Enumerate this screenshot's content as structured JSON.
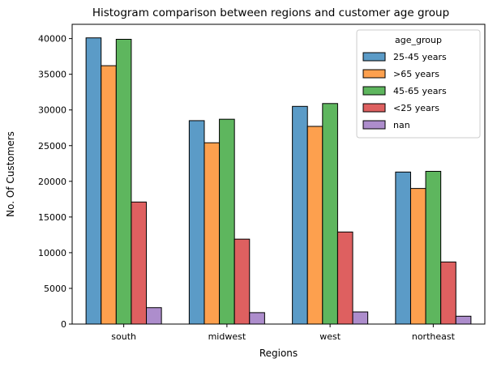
{
  "chart_data": {
    "type": "bar",
    "title": "Histogram comparison between regions and customer age group",
    "xlabel": "Regions",
    "ylabel": "No. Of Customers",
    "categories": [
      "south",
      "midwest",
      "west",
      "northeast"
    ],
    "ylim": [
      0,
      42000
    ],
    "yticks": [
      0,
      5000,
      10000,
      15000,
      20000,
      25000,
      30000,
      35000,
      40000
    ],
    "grid": false,
    "legend": {
      "title": "age_group",
      "placement": "top-right"
    },
    "series": [
      {
        "name": "25-45 years",
        "color": "#5b9bc7",
        "values": [
          40100,
          28500,
          30500,
          21300
        ]
      },
      {
        "name": ">65 years",
        "color": "#fda04e",
        "values": [
          36200,
          25400,
          27700,
          19000
        ]
      },
      {
        "name": "45-65 years",
        "color": "#5eb65e",
        "values": [
          39900,
          28700,
          30900,
          21400
        ]
      },
      {
        "name": "<25 years",
        "color": "#de6060",
        "values": [
          17100,
          11900,
          12900,
          8700
        ]
      },
      {
        "name": "nan",
        "color": "#ad8dcc",
        "values": [
          2300,
          1600,
          1700,
          1100
        ]
      }
    ]
  }
}
